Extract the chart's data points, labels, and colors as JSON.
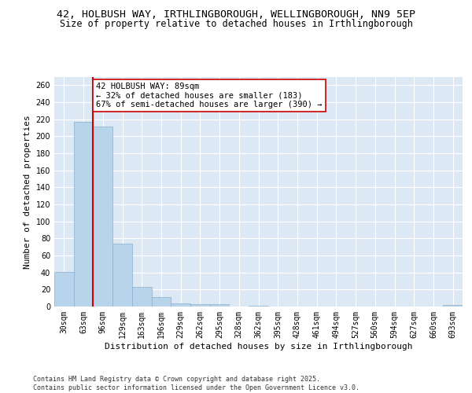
{
  "title_line1": "42, HOLBUSH WAY, IRTHLINGBOROUGH, WELLINGBOROUGH, NN9 5EP",
  "title_line2": "Size of property relative to detached houses in Irthlingborough",
  "xlabel": "Distribution of detached houses by size in Irthlingborough",
  "ylabel": "Number of detached properties",
  "categories": [
    "30sqm",
    "63sqm",
    "96sqm",
    "129sqm",
    "163sqm",
    "196sqm",
    "229sqm",
    "262sqm",
    "295sqm",
    "328sqm",
    "362sqm",
    "395sqm",
    "428sqm",
    "461sqm",
    "494sqm",
    "527sqm",
    "560sqm",
    "594sqm",
    "627sqm",
    "660sqm",
    "693sqm"
  ],
  "values": [
    41,
    217,
    211,
    74,
    23,
    11,
    4,
    3,
    3,
    0,
    1,
    0,
    0,
    0,
    0,
    0,
    0,
    0,
    0,
    0,
    2
  ],
  "bar_color": "#b8d4ea",
  "bar_edge_color": "#8ab0d0",
  "highlight_line_color": "#cc0000",
  "annotation_box_color": "#ffffff",
  "annotation_box_edge_color": "#cc0000",
  "ylim": [
    0,
    270
  ],
  "yticks": [
    0,
    20,
    40,
    60,
    80,
    100,
    120,
    140,
    160,
    180,
    200,
    220,
    240,
    260
  ],
  "background_color": "#dde8f5",
  "footer_text": "Contains HM Land Registry data © Crown copyright and database right 2025.\nContains public sector information licensed under the Open Government Licence v3.0.",
  "title_fontsize": 9.5,
  "subtitle_fontsize": 8.5,
  "label_fontsize": 8,
  "tick_fontsize": 7,
  "footer_fontsize": 6,
  "annotation_fontsize": 7.5,
  "annotation_text_line1": "42 HOLBUSH WAY: 89sqm",
  "annotation_text_line2": "← 32% of detached houses are smaller (183)",
  "annotation_text_line3": "67% of semi-detached houses are larger (390) →"
}
